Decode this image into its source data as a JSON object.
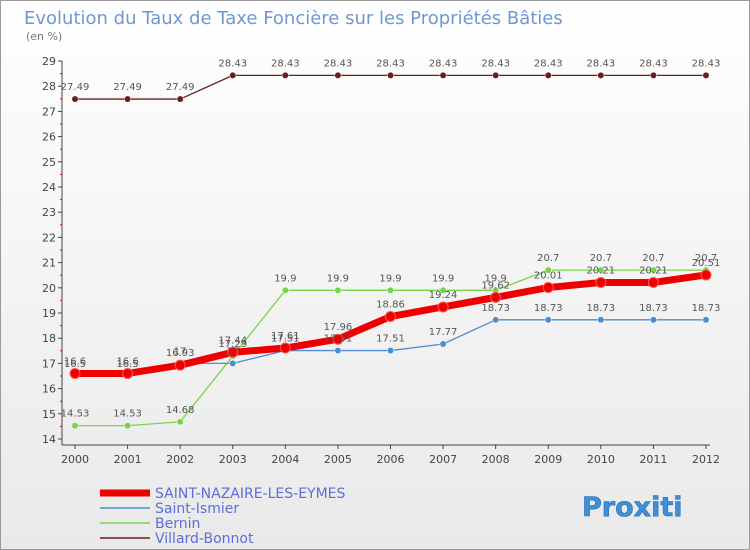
{
  "chart_data": {
    "type": "line",
    "title": "Evolution du Taux de Taxe Foncière sur les Propriétés Bâties",
    "subtitle": "(en %)",
    "x": [
      "2000",
      "2001",
      "2002",
      "2003",
      "2004",
      "2005",
      "2006",
      "2007",
      "2008",
      "2009",
      "2010",
      "2011",
      "2012"
    ],
    "ylim": [
      14,
      29
    ],
    "yticks": [
      "14",
      "15",
      "16",
      "17",
      "18",
      "19",
      "20",
      "21",
      "22",
      "23",
      "24",
      "25",
      "26",
      "27",
      "28",
      "29"
    ],
    "series": [
      {
        "name": "SAINT-NAZAIRE-LES-EYMES",
        "color": "#ee0000",
        "values": [
          16.6,
          16.6,
          16.93,
          17.44,
          17.61,
          17.96,
          18.86,
          19.24,
          19.62,
          20.01,
          20.21,
          20.21,
          20.51
        ],
        "labels": [
          "16.6",
          "16.6",
          "16.93",
          "17.44",
          "17.61",
          "17.96",
          "18.86",
          "19.24",
          "19.62",
          "20.01",
          "20.21",
          "20.21",
          "20.51"
        ]
      },
      {
        "name": "Saint-Ismier",
        "color": "#4a8ed0",
        "values": [
          16.5,
          16.5,
          17.0,
          17.0,
          17.51,
          17.51,
          17.51,
          17.77,
          18.73,
          18.73,
          18.73,
          18.73,
          18.73
        ],
        "labels": [
          "16.5",
          "16.5",
          "17",
          "17",
          "17.51",
          "17.51",
          "17.51",
          "17.77",
          "18.73",
          "18.73",
          "18.73",
          "18.73",
          "18.73"
        ]
      },
      {
        "name": "Bernin",
        "color": "#77d44a",
        "values": [
          14.53,
          14.53,
          14.68,
          17.29,
          19.9,
          19.9,
          19.9,
          19.9,
          19.9,
          20.7,
          20.7,
          20.7,
          20.7
        ],
        "labels": [
          "14.53",
          "14.53",
          "14.68",
          "17.29",
          "19.9",
          "19.9",
          "19.9",
          "19.9",
          "19.9",
          "20.7",
          "20.7",
          "20.7",
          "20.7"
        ]
      },
      {
        "name": "Villard-Bonnot",
        "color": "#6b1c1c",
        "values": [
          27.49,
          27.49,
          27.49,
          28.43,
          28.43,
          28.43,
          28.43,
          28.43,
          28.43,
          28.43,
          28.43,
          28.43,
          28.43
        ],
        "labels": [
          "27.49",
          "27.49",
          "27.49",
          "28.43",
          "28.43",
          "28.43",
          "28.43",
          "28.43",
          "28.43",
          "28.43",
          "28.43",
          "28.43",
          "28.43"
        ]
      }
    ],
    "legend_position": "bottom-left",
    "grid": false
  },
  "brand": {
    "text": "Proxiti"
  }
}
